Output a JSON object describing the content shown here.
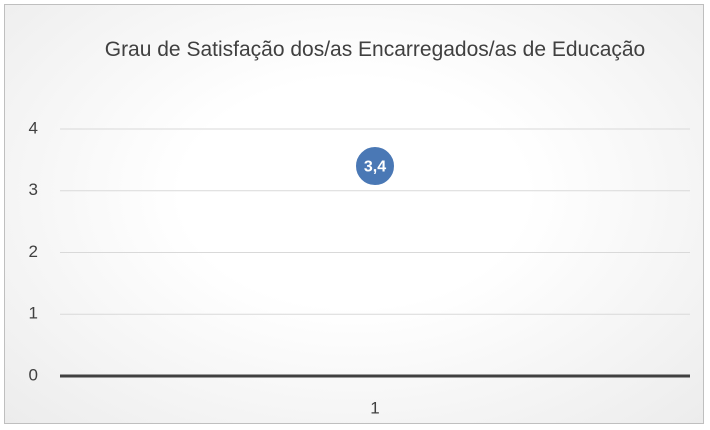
{
  "chart_data": {
    "type": "line",
    "title": "Grau de Satisfação dos/as Encarregados/as de Educação",
    "categories": [
      "1"
    ],
    "values": [
      3.4
    ],
    "value_labels": [
      "3,4"
    ],
    "color": "#4a78b5",
    "ylim": [
      0,
      4
    ],
    "yticks": [
      0,
      1,
      2,
      3,
      4
    ],
    "grid": true
  }
}
